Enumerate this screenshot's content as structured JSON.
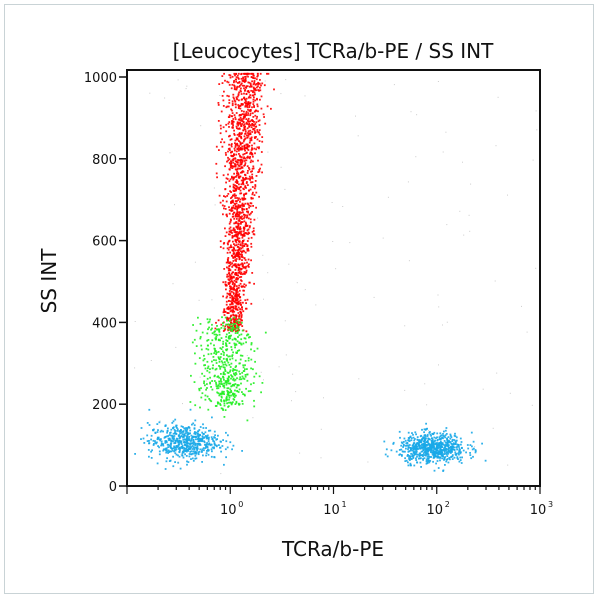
{
  "chart_data": {
    "type": "scatter",
    "title": "[Leucocytes] TCRa/b-PE / SS INT",
    "xlabel": "TCRa/b-PE",
    "ylabel": "SS INT",
    "xscale": "log",
    "xlim": [
      0.1,
      1000
    ],
    "ylim": [
      0,
      1000
    ],
    "xticks": [
      {
        "value": 1,
        "label": "10",
        "exp": "0"
      },
      {
        "value": 10,
        "label": "10",
        "exp": "1"
      },
      {
        "value": 100,
        "label": "10",
        "exp": "2"
      },
      {
        "value": 1000,
        "label": "10",
        "exp": "3"
      }
    ],
    "yticks": [
      {
        "value": 0,
        "label": "0"
      },
      {
        "value": 200,
        "label": "200"
      },
      {
        "value": 400,
        "label": "400"
      },
      {
        "value": 600,
        "label": "600"
      },
      {
        "value": 800,
        "label": "800"
      },
      {
        "value": 1000,
        "label": "1000"
      }
    ],
    "grid": false,
    "populations": [
      {
        "color": "#ff0000",
        "x_range": [
          0.8,
          1.8
        ],
        "y_range": [
          380,
          1000
        ],
        "count": 1600
      },
      {
        "color": "#22ee22",
        "x_range": [
          0.5,
          2.5
        ],
        "y_range": [
          200,
          400
        ],
        "count": 500
      },
      {
        "color": "#19a8e8",
        "x_center": 0.35,
        "y_center": 110,
        "count": 550
      },
      {
        "color": "#19a8e8",
        "x_center": 90,
        "y_center": 95,
        "count": 700
      },
      {
        "color": "#aaaaaa",
        "x_range": [
          0.1,
          1000
        ],
        "y_range": [
          0,
          1000
        ],
        "count": 120
      }
    ]
  }
}
